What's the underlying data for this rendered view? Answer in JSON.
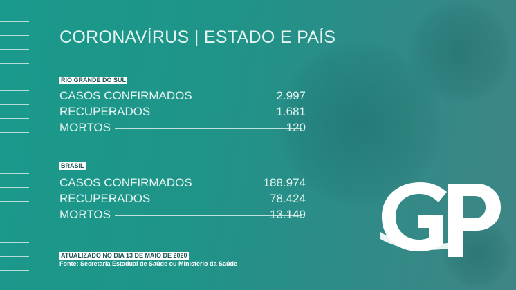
{
  "title": "CORONAVÍRUS | ESTADO E PAÍS",
  "sections": [
    {
      "heading": "RIO GRANDE DO SUL",
      "rows": [
        {
          "label": "CASOS CONFIRMADOS",
          "value": "2.997"
        },
        {
          "label": "RECUPERADOS",
          "value": "1.681"
        },
        {
          "label": "MORTOS",
          "value": "120"
        }
      ]
    },
    {
      "heading": "BRASIL",
      "rows": [
        {
          "label": "CASOS CONFIRMADOS",
          "value": "188.974"
        },
        {
          "label": "RECUPERADOS",
          "value": "78.424"
        },
        {
          "label": "MORTOS",
          "value": "13.149"
        }
      ]
    }
  ],
  "updated": "ATUALIZADO NO DIA 13 DE MAIO DE 2020",
  "source": "Fonte: Secretaria Estadual de Saúde ou Ministério da Saúde",
  "logo": "GP",
  "colors": {
    "background": "#1f9488",
    "text": "#e6f4f1",
    "tag_text": "#1f5656"
  }
}
